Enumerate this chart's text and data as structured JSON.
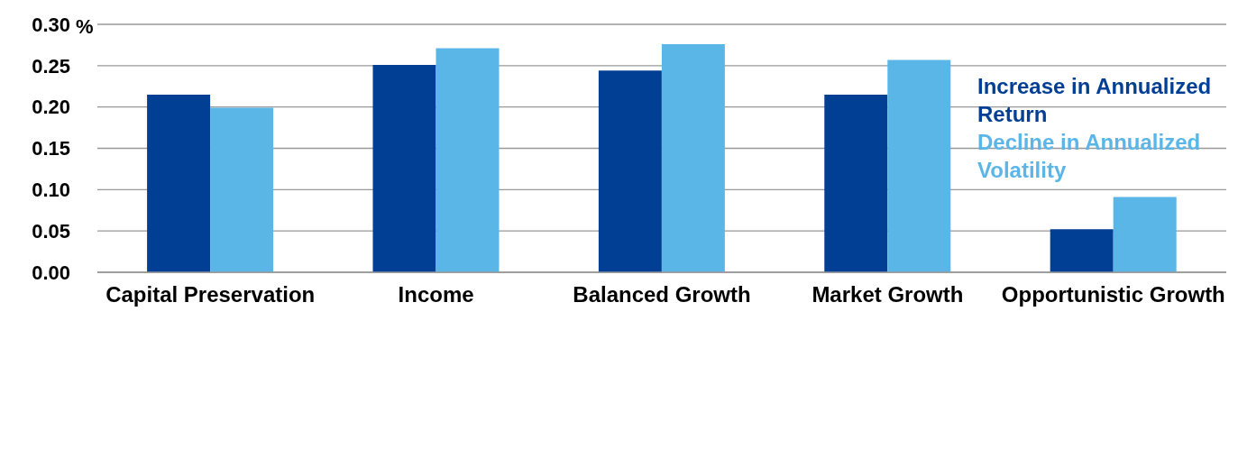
{
  "chart_data": {
    "type": "bar",
    "ylabel": "%",
    "categories": [
      "Capital Preservation",
      "Income",
      "Balanced Growth",
      "Market Growth",
      "Opportunistic Growth"
    ],
    "series": [
      {
        "name": "Increase in Annualized Return",
        "color": "#003f94",
        "values": [
          0.215,
          0.251,
          0.244,
          0.215,
          0.052
        ]
      },
      {
        "name": "Decline in Annualized Volatility",
        "color": "#5bb6e8",
        "values": [
          0.199,
          0.271,
          0.276,
          0.257,
          0.091
        ]
      }
    ],
    "ylim": [
      0,
      0.3
    ],
    "yticks": [
      {
        "value": 0,
        "label": "0.00"
      },
      {
        "value": 0.05,
        "label": "0.05"
      },
      {
        "value": 0.1,
        "label": "0.10"
      },
      {
        "value": 0.15,
        "label": "0.15"
      },
      {
        "value": 0.2,
        "label": "0.20"
      },
      {
        "value": 0.25,
        "label": "0.25"
      },
      {
        "value": 0.3,
        "label": "0.30"
      }
    ],
    "grid": "y",
    "legend": "right"
  }
}
